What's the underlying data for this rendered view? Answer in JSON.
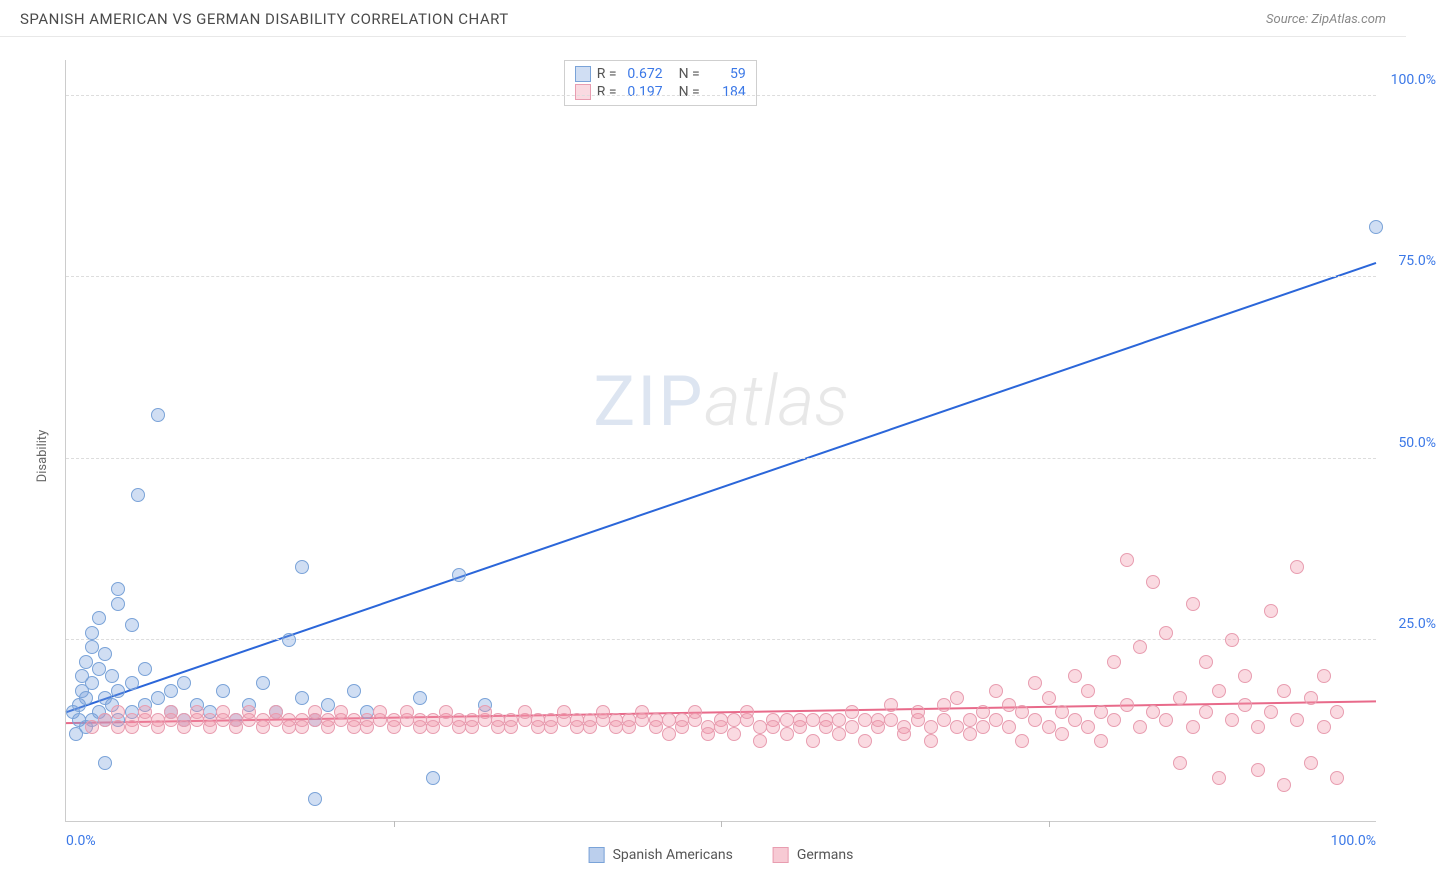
{
  "title": "SPANISH AMERICAN VS GERMAN DISABILITY CORRELATION CHART",
  "source": "Source: ZipAtlas.com",
  "ylabel": "Disability",
  "watermark": {
    "a": "ZIP",
    "b": "atlas"
  },
  "chart": {
    "type": "scatter",
    "xlim": [
      0,
      100
    ],
    "ylim": [
      0,
      105
    ],
    "xtick_labels": {
      "0": "0.0%",
      "100": "100.0%"
    },
    "ytick_positions": [
      25,
      50,
      75,
      100
    ],
    "ytick_labels": [
      "25.0%",
      "50.0%",
      "75.0%",
      "100.0%"
    ],
    "ytick_color": "#3b78e7",
    "xtick_color": "#3b78e7",
    "grid_color": "#dddddd",
    "background_color": "#ffffff",
    "marker_radius": 7,
    "marker_border_width": 1.5,
    "series": [
      {
        "name": "Spanish Americans",
        "fill": "rgba(120,160,220,0.35)",
        "stroke": "#7aa3d8",
        "trend": {
          "x1": 0,
          "y1": 15,
          "x2": 100,
          "y2": 77,
          "color": "#2b66d9",
          "width": 2
        },
        "stats": {
          "R": "0.672",
          "N": "59"
        },
        "points": [
          [
            0.5,
            15
          ],
          [
            0.8,
            12
          ],
          [
            1,
            14
          ],
          [
            1,
            16
          ],
          [
            1.2,
            18
          ],
          [
            1.2,
            20
          ],
          [
            1.5,
            13
          ],
          [
            1.5,
            17
          ],
          [
            1.5,
            22
          ],
          [
            2,
            14
          ],
          [
            2,
            19
          ],
          [
            2,
            24
          ],
          [
            2,
            26
          ],
          [
            2.5,
            15
          ],
          [
            2.5,
            21
          ],
          [
            2.5,
            28
          ],
          [
            3,
            14
          ],
          [
            3,
            17
          ],
          [
            3,
            23
          ],
          [
            3,
            8
          ],
          [
            3.5,
            16
          ],
          [
            3.5,
            20
          ],
          [
            4,
            14
          ],
          [
            4,
            18
          ],
          [
            4,
            30
          ],
          [
            4,
            32
          ],
          [
            5,
            15
          ],
          [
            5,
            19
          ],
          [
            5,
            27
          ],
          [
            5.5,
            45
          ],
          [
            6,
            16
          ],
          [
            6,
            21
          ],
          [
            7,
            56
          ],
          [
            7,
            17
          ],
          [
            8,
            15
          ],
          [
            8,
            18
          ],
          [
            9,
            14
          ],
          [
            9,
            19
          ],
          [
            10,
            16
          ],
          [
            11,
            15
          ],
          [
            12,
            18
          ],
          [
            13,
            14
          ],
          [
            14,
            16
          ],
          [
            15,
            19
          ],
          [
            16,
            15
          ],
          [
            17,
            25
          ],
          [
            18,
            35
          ],
          [
            18,
            17
          ],
          [
            19,
            14
          ],
          [
            19,
            3
          ],
          [
            20,
            16
          ],
          [
            22,
            18
          ],
          [
            23,
            15
          ],
          [
            27,
            17
          ],
          [
            28,
            6
          ],
          [
            30,
            34
          ],
          [
            32,
            16
          ],
          [
            100,
            82
          ]
        ]
      },
      {
        "name": "Germans",
        "fill": "rgba(240,150,170,0.35)",
        "stroke": "#e89db0",
        "trend": {
          "x1": 0,
          "y1": 13.5,
          "x2": 100,
          "y2": 16.5,
          "color": "#e86a8a",
          "width": 2
        },
        "stats": {
          "R": "0.197",
          "N": "184"
        },
        "points": [
          [
            2,
            13
          ],
          [
            3,
            14
          ],
          [
            4,
            13
          ],
          [
            4,
            15
          ],
          [
            5,
            14
          ],
          [
            5,
            13
          ],
          [
            6,
            14
          ],
          [
            6,
            15
          ],
          [
            7,
            13
          ],
          [
            7,
            14
          ],
          [
            8,
            14
          ],
          [
            8,
            15
          ],
          [
            9,
            13
          ],
          [
            9,
            14
          ],
          [
            10,
            14
          ],
          [
            10,
            15
          ],
          [
            11,
            13
          ],
          [
            11,
            14
          ],
          [
            12,
            14
          ],
          [
            12,
            15
          ],
          [
            13,
            13
          ],
          [
            13,
            14
          ],
          [
            14,
            14
          ],
          [
            14,
            15
          ],
          [
            15,
            13
          ],
          [
            15,
            14
          ],
          [
            16,
            14
          ],
          [
            16,
            15
          ],
          [
            17,
            13
          ],
          [
            17,
            14
          ],
          [
            18,
            14
          ],
          [
            18,
            13
          ],
          [
            19,
            14
          ],
          [
            19,
            15
          ],
          [
            20,
            13
          ],
          [
            20,
            14
          ],
          [
            21,
            14
          ],
          [
            21,
            15
          ],
          [
            22,
            13
          ],
          [
            22,
            14
          ],
          [
            23,
            14
          ],
          [
            23,
            13
          ],
          [
            24,
            14
          ],
          [
            24,
            15
          ],
          [
            25,
            13
          ],
          [
            25,
            14
          ],
          [
            26,
            14
          ],
          [
            26,
            15
          ],
          [
            27,
            13
          ],
          [
            27,
            14
          ],
          [
            28,
            14
          ],
          [
            28,
            13
          ],
          [
            29,
            14
          ],
          [
            29,
            15
          ],
          [
            30,
            13
          ],
          [
            30,
            14
          ],
          [
            31,
            14
          ],
          [
            31,
            13
          ],
          [
            32,
            14
          ],
          [
            32,
            15
          ],
          [
            33,
            13
          ],
          [
            33,
            14
          ],
          [
            34,
            14
          ],
          [
            34,
            13
          ],
          [
            35,
            14
          ],
          [
            35,
            15
          ],
          [
            36,
            13
          ],
          [
            36,
            14
          ],
          [
            37,
            14
          ],
          [
            37,
            13
          ],
          [
            38,
            14
          ],
          [
            38,
            15
          ],
          [
            39,
            13
          ],
          [
            39,
            14
          ],
          [
            40,
            14
          ],
          [
            40,
            13
          ],
          [
            41,
            14
          ],
          [
            41,
            15
          ],
          [
            42,
            13
          ],
          [
            42,
            14
          ],
          [
            43,
            14
          ],
          [
            43,
            13
          ],
          [
            44,
            14
          ],
          [
            44,
            15
          ],
          [
            45,
            13
          ],
          [
            45,
            14
          ],
          [
            46,
            14
          ],
          [
            46,
            12
          ],
          [
            47,
            14
          ],
          [
            47,
            13
          ],
          [
            48,
            14
          ],
          [
            48,
            15
          ],
          [
            49,
            13
          ],
          [
            49,
            12
          ],
          [
            50,
            14
          ],
          [
            50,
            13
          ],
          [
            51,
            14
          ],
          [
            51,
            12
          ],
          [
            52,
            14
          ],
          [
            52,
            15
          ],
          [
            53,
            13
          ],
          [
            53,
            11
          ],
          [
            54,
            14
          ],
          [
            54,
            13
          ],
          [
            55,
            14
          ],
          [
            55,
            12
          ],
          [
            56,
            13
          ],
          [
            56,
            14
          ],
          [
            57,
            14
          ],
          [
            57,
            11
          ],
          [
            58,
            13
          ],
          [
            58,
            14
          ],
          [
            59,
            14
          ],
          [
            59,
            12
          ],
          [
            60,
            13
          ],
          [
            60,
            15
          ],
          [
            61,
            14
          ],
          [
            61,
            11
          ],
          [
            62,
            13
          ],
          [
            62,
            14
          ],
          [
            63,
            14
          ],
          [
            63,
            16
          ],
          [
            64,
            13
          ],
          [
            64,
            12
          ],
          [
            65,
            14
          ],
          [
            65,
            15
          ],
          [
            66,
            13
          ],
          [
            66,
            11
          ],
          [
            67,
            14
          ],
          [
            67,
            16
          ],
          [
            68,
            13
          ],
          [
            68,
            17
          ],
          [
            69,
            14
          ],
          [
            69,
            12
          ],
          [
            70,
            15
          ],
          [
            70,
            13
          ],
          [
            71,
            14
          ],
          [
            71,
            18
          ],
          [
            72,
            13
          ],
          [
            72,
            16
          ],
          [
            73,
            15
          ],
          [
            73,
            11
          ],
          [
            74,
            14
          ],
          [
            74,
            19
          ],
          [
            75,
            13
          ],
          [
            75,
            17
          ],
          [
            76,
            15
          ],
          [
            76,
            12
          ],
          [
            77,
            14
          ],
          [
            77,
            20
          ],
          [
            78,
            13
          ],
          [
            78,
            18
          ],
          [
            79,
            15
          ],
          [
            79,
            11
          ],
          [
            80,
            14
          ],
          [
            80,
            22
          ],
          [
            81,
            36
          ],
          [
            81,
            16
          ],
          [
            82,
            13
          ],
          [
            82,
            24
          ],
          [
            83,
            33
          ],
          [
            83,
            15
          ],
          [
            84,
            14
          ],
          [
            84,
            26
          ],
          [
            85,
            17
          ],
          [
            85,
            8
          ],
          [
            86,
            30
          ],
          [
            86,
            13
          ],
          [
            87,
            15
          ],
          [
            87,
            22
          ],
          [
            88,
            18
          ],
          [
            88,
            6
          ],
          [
            89,
            25
          ],
          [
            89,
            14
          ],
          [
            90,
            16
          ],
          [
            90,
            20
          ],
          [
            91,
            13
          ],
          [
            91,
            7
          ],
          [
            92,
            15
          ],
          [
            92,
            29
          ],
          [
            93,
            18
          ],
          [
            93,
            5
          ],
          [
            94,
            14
          ],
          [
            94,
            35
          ],
          [
            95,
            17
          ],
          [
            95,
            8
          ],
          [
            96,
            13
          ],
          [
            96,
            20
          ],
          [
            97,
            15
          ],
          [
            97,
            6
          ]
        ]
      }
    ]
  },
  "legend": {
    "items": [
      {
        "label": "Spanish Americans",
        "fill": "rgba(120,160,220,0.5)",
        "stroke": "#7aa3d8"
      },
      {
        "label": "Germans",
        "fill": "rgba(240,150,170,0.5)",
        "stroke": "#e89db0"
      }
    ]
  }
}
